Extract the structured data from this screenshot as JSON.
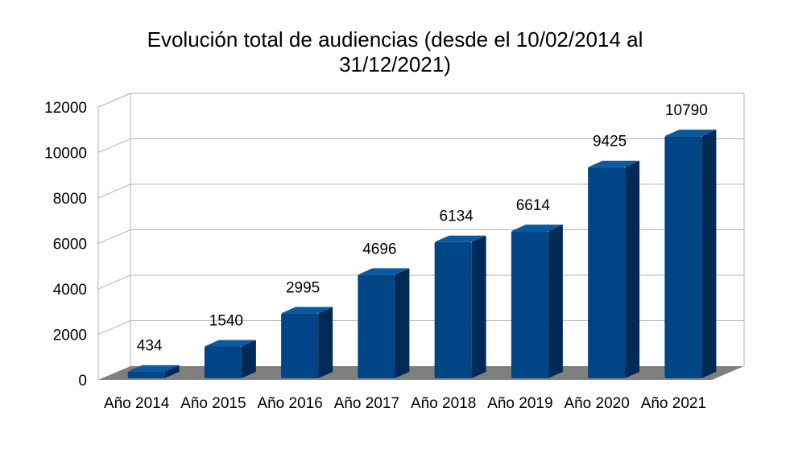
{
  "chart_data": {
    "type": "bar",
    "title_line1": "Evolución total de audiencias (desde el 10/02/2014 al",
    "title_line2": "31/12/2021)",
    "categories": [
      "Año 2014",
      "Año 2015",
      "Año 2016",
      "Año 2017",
      "Año 2018",
      "Año 2019",
      "Año 2020",
      "Año 2021"
    ],
    "values": [
      434,
      1540,
      2995,
      4696,
      6134,
      6614,
      9425,
      10790
    ],
    "ylim": [
      0,
      12000
    ],
    "yticks": [
      0,
      2000,
      4000,
      6000,
      8000,
      10000,
      12000
    ],
    "grid": true,
    "three_d": true,
    "colors": {
      "bar_front": "#004586",
      "bar_side": "#002a55",
      "bar_top": "#0a5aa3",
      "floor": "#7f7f7f",
      "grid": "#b3b3b3",
      "wall_edge": "#b3b3b3"
    }
  }
}
